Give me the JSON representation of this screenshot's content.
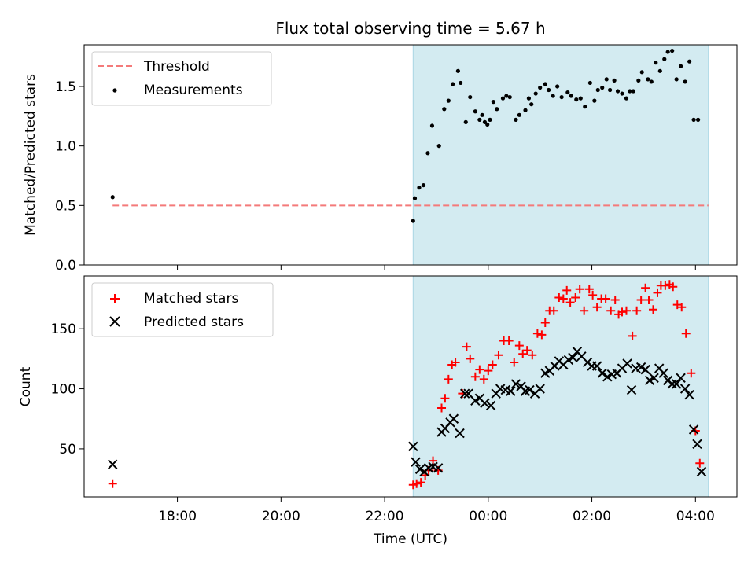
{
  "figure": {
    "title": "Flux total observing time = 5.67 h"
  },
  "colors": {
    "shade": "#d3ebf1",
    "threshold": "#f47a7a",
    "measurement": "#000000",
    "matched": "#ff0000",
    "predicted": "#000000"
  },
  "chart_data": [
    {
      "type": "scatter",
      "ylabel": "Matched/Predicted stars",
      "xlabel": "",
      "ylim": [
        0,
        1.85
      ],
      "yticks": [
        "0.0",
        "0.5",
        "1.0",
        "1.5"
      ],
      "x_range_hours": [
        16.2,
        28.8
      ],
      "shaded_range": [
        "22:33",
        "04:15"
      ],
      "legend": {
        "position": "top-left",
        "entries": [
          "Threshold",
          "Measurements"
        ]
      },
      "threshold": {
        "name": "Threshold",
        "y": 0.5,
        "x": [
          "16:45",
          "04:15"
        ]
      },
      "series": [
        {
          "name": "Measurements",
          "points": [
            [
              "16:45",
              0.57
            ],
            [
              "22:33",
              0.37
            ],
            [
              "22:35",
              0.56
            ],
            [
              "22:40",
              0.65
            ],
            [
              "22:45",
              0.67
            ],
            [
              "22:50",
              0.94
            ],
            [
              "22:55",
              1.17
            ],
            [
              "23:03",
              1.0
            ],
            [
              "23:09",
              1.31
            ],
            [
              "23:14",
              1.38
            ],
            [
              "23:19",
              1.52
            ],
            [
              "23:25",
              1.63
            ],
            [
              "23:28",
              1.53
            ],
            [
              "23:34",
              1.2
            ],
            [
              "23:39",
              1.41
            ],
            [
              "23:45",
              1.29
            ],
            [
              "23:50",
              1.22
            ],
            [
              "23:53",
              1.26
            ],
            [
              "23:56",
              1.2
            ],
            [
              "23:59",
              1.18
            ],
            [
              "00:02",
              1.22
            ],
            [
              "00:06",
              1.37
            ],
            [
              "00:10",
              1.31
            ],
            [
              "00:17",
              1.4
            ],
            [
              "00:21",
              1.42
            ],
            [
              "00:25",
              1.41
            ],
            [
              "00:32",
              1.22
            ],
            [
              "00:36",
              1.26
            ],
            [
              "00:43",
              1.3
            ],
            [
              "00:47",
              1.4
            ],
            [
              "00:50",
              1.35
            ],
            [
              "00:55",
              1.44
            ],
            [
              "01:00",
              1.49
            ],
            [
              "01:06",
              1.52
            ],
            [
              "01:10",
              1.47
            ],
            [
              "01:15",
              1.42
            ],
            [
              "01:20",
              1.5
            ],
            [
              "01:25",
              1.41
            ],
            [
              "01:32",
              1.45
            ],
            [
              "01:36",
              1.42
            ],
            [
              "01:42",
              1.39
            ],
            [
              "01:47",
              1.4
            ],
            [
              "01:52",
              1.33
            ],
            [
              "01:58",
              1.53
            ],
            [
              "02:03",
              1.38
            ],
            [
              "02:07",
              1.47
            ],
            [
              "02:12",
              1.49
            ],
            [
              "02:17",
              1.56
            ],
            [
              "02:21",
              1.47
            ],
            [
              "02:26",
              1.55
            ],
            [
              "02:30",
              1.46
            ],
            [
              "02:35",
              1.44
            ],
            [
              "02:40",
              1.4
            ],
            [
              "02:44",
              1.46
            ],
            [
              "02:48",
              1.46
            ],
            [
              "02:54",
              1.55
            ],
            [
              "02:58",
              1.62
            ],
            [
              "03:05",
              1.56
            ],
            [
              "03:09",
              1.54
            ],
            [
              "03:14",
              1.7
            ],
            [
              "03:19",
              1.63
            ],
            [
              "03:24",
              1.73
            ],
            [
              "03:28",
              1.79
            ],
            [
              "03:33",
              1.8
            ],
            [
              "03:38",
              1.56
            ],
            [
              "03:43",
              1.67
            ],
            [
              "03:48",
              1.54
            ],
            [
              "03:53",
              1.71
            ],
            [
              "03:58",
              1.22
            ],
            [
              "04:03",
              1.22
            ]
          ]
        }
      ]
    },
    {
      "type": "scatter",
      "ylabel": "Count",
      "xlabel": "Time (UTC)",
      "ylim": [
        10,
        194
      ],
      "yticks": [
        "50",
        "100",
        "150"
      ],
      "xticks": [
        "18:00",
        "20:00",
        "22:00",
        "00:00",
        "02:00",
        "04:00"
      ],
      "x_range_hours": [
        16.2,
        28.8
      ],
      "shaded_range": [
        "22:33",
        "04:15"
      ],
      "legend": {
        "position": "top-left",
        "entries": [
          "Matched stars",
          "Predicted stars"
        ]
      },
      "series": [
        {
          "name": "Matched stars",
          "marker": "plus",
          "points": [
            [
              "16:45",
              21
            ],
            [
              "22:33",
              20
            ],
            [
              "22:37",
              21
            ],
            [
              "22:42",
              22
            ],
            [
              "22:47",
              28
            ],
            [
              "22:51",
              32
            ],
            [
              "22:56",
              40
            ],
            [
              "23:02",
              32
            ],
            [
              "23:06",
              84
            ],
            [
              "23:10",
              92
            ],
            [
              "23:14",
              108
            ],
            [
              "23:18",
              120
            ],
            [
              "23:22",
              122
            ],
            [
              "23:30",
              96
            ],
            [
              "23:35",
              135
            ],
            [
              "23:39",
              125
            ],
            [
              "23:45",
              110
            ],
            [
              "23:50",
              116
            ],
            [
              "23:55",
              108
            ],
            [
              "00:00",
              115
            ],
            [
              "00:05",
              120
            ],
            [
              "00:12",
              128
            ],
            [
              "00:18",
              140
            ],
            [
              "00:24",
              140
            ],
            [
              "00:30",
              122
            ],
            [
              "00:36",
              136
            ],
            [
              "00:40",
              129
            ],
            [
              "00:45",
              132
            ],
            [
              "00:51",
              128
            ],
            [
              "00:57",
              146
            ],
            [
              "01:02",
              145
            ],
            [
              "01:06",
              155
            ],
            [
              "01:11",
              165
            ],
            [
              "01:16",
              165
            ],
            [
              "01:22",
              176
            ],
            [
              "01:27",
              175
            ],
            [
              "01:31",
              182
            ],
            [
              "01:35",
              172
            ],
            [
              "01:41",
              176
            ],
            [
              "01:46",
              183
            ],
            [
              "01:51",
              165
            ],
            [
              "01:57",
              183
            ],
            [
              "02:01",
              178
            ],
            [
              "02:06",
              168
            ],
            [
              "02:11",
              175
            ],
            [
              "02:16",
              175
            ],
            [
              "02:22",
              165
            ],
            [
              "02:27",
              174
            ],
            [
              "02:31",
              162
            ],
            [
              "02:35",
              164
            ],
            [
              "02:40",
              165
            ],
            [
              "02:47",
              144
            ],
            [
              "02:52",
              165
            ],
            [
              "02:57",
              174
            ],
            [
              "03:02",
              184
            ],
            [
              "03:06",
              174
            ],
            [
              "03:11",
              166
            ],
            [
              "03:16",
              180
            ],
            [
              "03:20",
              186
            ],
            [
              "03:25",
              186
            ],
            [
              "03:30",
              187
            ],
            [
              "03:34",
              185
            ],
            [
              "03:39",
              170
            ],
            [
              "03:44",
              168
            ],
            [
              "03:49",
              146
            ],
            [
              "03:55",
              113
            ],
            [
              "04:00",
              65
            ],
            [
              "04:05",
              38
            ]
          ]
        },
        {
          "name": "Predicted stars",
          "marker": "x",
          "points": [
            [
              "16:45",
              37
            ],
            [
              "22:33",
              52
            ],
            [
              "22:36",
              39
            ],
            [
              "22:41",
              33
            ],
            [
              "22:46",
              31
            ],
            [
              "22:51",
              34
            ],
            [
              "22:56",
              35
            ],
            [
              "23:02",
              34
            ],
            [
              "23:06",
              64
            ],
            [
              "23:10",
              67
            ],
            [
              "23:16",
              72
            ],
            [
              "23:20",
              75
            ],
            [
              "23:27",
              63
            ],
            [
              "23:33",
              96
            ],
            [
              "23:37",
              96
            ],
            [
              "23:45",
              90
            ],
            [
              "23:50",
              92
            ],
            [
              "23:56",
              88
            ],
            [
              "00:03",
              86
            ],
            [
              "00:09",
              96
            ],
            [
              "00:14",
              100
            ],
            [
              "00:20",
              99
            ],
            [
              "00:26",
              98
            ],
            [
              "00:32",
              104
            ],
            [
              "00:38",
              102
            ],
            [
              "00:43",
              98
            ],
            [
              "00:48",
              99
            ],
            [
              "00:54",
              96
            ],
            [
              "01:00",
              100
            ],
            [
              "01:06",
              113
            ],
            [
              "01:11",
              115
            ],
            [
              "01:17",
              119
            ],
            [
              "01:22",
              123
            ],
            [
              "01:27",
              120
            ],
            [
              "01:33",
              124
            ],
            [
              "01:38",
              126
            ],
            [
              "01:43",
              131
            ],
            [
              "01:48",
              127
            ],
            [
              "01:55",
              122
            ],
            [
              "02:00",
              119
            ],
            [
              "02:06",
              119
            ],
            [
              "02:12",
              113
            ],
            [
              "02:18",
              110
            ],
            [
              "02:23",
              112
            ],
            [
              "02:29",
              113
            ],
            [
              "02:35",
              117
            ],
            [
              "02:41",
              121
            ],
            [
              "02:46",
              99
            ],
            [
              "02:51",
              117
            ],
            [
              "02:57",
              118
            ],
            [
              "03:02",
              116
            ],
            [
              "03:07",
              107
            ],
            [
              "03:12",
              109
            ],
            [
              "03:18",
              117
            ],
            [
              "03:23",
              113
            ],
            [
              "03:28",
              107
            ],
            [
              "03:33",
              104
            ],
            [
              "03:38",
              104
            ],
            [
              "03:43",
              109
            ],
            [
              "03:48",
              100
            ],
            [
              "03:53",
              95
            ],
            [
              "03:58",
              66
            ],
            [
              "04:02",
              54
            ],
            [
              "04:07",
              31
            ]
          ]
        }
      ]
    }
  ]
}
